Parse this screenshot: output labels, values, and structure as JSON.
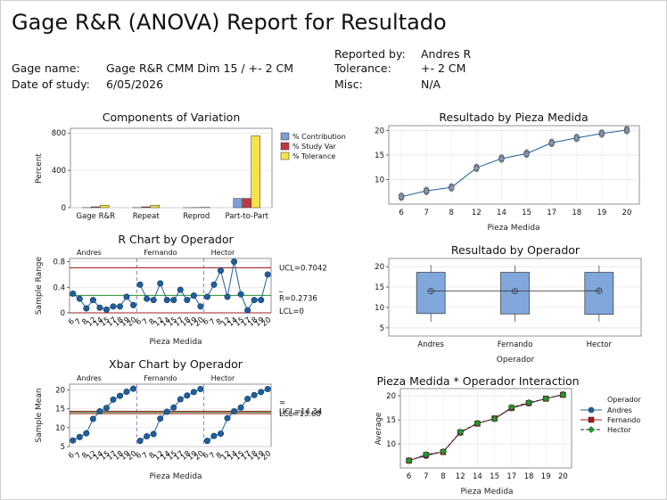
{
  "report": {
    "title": "Gage R&R (ANOVA) Report for Resultado",
    "gage_name_label": "Gage name:",
    "gage_name": "Gage R&R CMM Dim 15 / +- 2 CM",
    "date_label": "Date of study:",
    "date": "6/05/2026",
    "reported_by_label": "Reported by:",
    "reported_by": "Andres R",
    "tolerance_label": "Tolerance:",
    "tolerance": "+- 2 CM",
    "misc_label": "Misc:",
    "misc": "N/A"
  },
  "colors": {
    "contribution": "#7a9fd4",
    "study_var": "#c0393f",
    "tolerance": "#f5e34a",
    "series_blue": "#1f5f9c",
    "ucl": "#a32020",
    "center": "#2e8b2e",
    "box": "#7fa7dc",
    "op_fernando": "#9b2020",
    "op_hector": "#1f9a2f"
  },
  "chart_data": [
    {
      "id": "components",
      "type": "bar",
      "title": "Components of Variation",
      "xlabel": "",
      "ylabel": "Percent",
      "ylim": [
        0,
        850
      ],
      "yticks": [
        0,
        400,
        800
      ],
      "categories": [
        "Gage R&R",
        "Repeat",
        "Reprod",
        "Part-to-Part"
      ],
      "series": [
        {
          "name": "% Contribution",
          "values": [
            0.9,
            0.9,
            0.1,
            99.1
          ]
        },
        {
          "name": "% Study Var",
          "values": [
            9.5,
            9.4,
            1.2,
            99.5
          ]
        },
        {
          "name": "% Tolerance",
          "values": [
            26,
            26,
            3,
            770
          ]
        }
      ],
      "legend": "right"
    },
    {
      "id": "part",
      "type": "line",
      "title": "Resultado by Pieza Medida",
      "xlabel": "Pieza Medida",
      "ylabel": "",
      "categories": [
        "6",
        "7",
        "8",
        "12",
        "14",
        "15",
        "17",
        "18",
        "19",
        "20"
      ],
      "ylim": [
        5,
        21
      ],
      "yticks": [
        10,
        15,
        20
      ],
      "values": [
        6.5,
        7.7,
        8.4,
        12.4,
        14.3,
        15.3,
        17.5,
        18.5,
        19.4,
        20.1
      ]
    },
    {
      "id": "rchart",
      "type": "line",
      "title": "R Chart by Operador",
      "xlabel": "Pieza Medida",
      "ylabel": "Sample Range",
      "panels": [
        "Andres",
        "Fernando",
        "Hector"
      ],
      "tick_labels": [
        "6",
        "7",
        "8",
        "12",
        "14",
        "15",
        "17",
        "18",
        "19",
        "20"
      ],
      "ylim": [
        0,
        0.85
      ],
      "yticks": [
        0.0,
        0.4,
        0.8
      ],
      "values": [
        0.3,
        0.22,
        0.07,
        0.2,
        0.08,
        0.05,
        0.1,
        0.1,
        0.25,
        0.12,
        0.44,
        0.22,
        0.2,
        0.46,
        0.2,
        0.2,
        0.36,
        0.2,
        0.27,
        0.1,
        0.25,
        0.44,
        0.66,
        0.25,
        0.8,
        0.29,
        0.04,
        0.2,
        0.2,
        0.6
      ],
      "ucl": 0.7042,
      "center": 0.2736,
      "lcl": 0,
      "labels": {
        "ucl": "UCL=0.7042",
        "center": "R=0.2736",
        "center_bar": "_",
        "lcl": "LCL=0"
      }
    },
    {
      "id": "xbar",
      "type": "line",
      "title": "Xbar Chart by Operador",
      "xlabel": "Pieza Medida",
      "ylabel": "Sample Mean",
      "panels": [
        "Andres",
        "Fernando",
        "Hector"
      ],
      "tick_labels": [
        "6",
        "7",
        "8",
        "12",
        "14",
        "15",
        "17",
        "18",
        "19",
        "20"
      ],
      "ylim": [
        5,
        21.5
      ],
      "yticks": [
        5,
        10,
        15,
        20
      ],
      "values": [
        6.6,
        7.5,
        8.5,
        12.3,
        14.3,
        15.2,
        17.4,
        18.4,
        19.5,
        20.3,
        6.5,
        7.7,
        8.3,
        12.4,
        14.2,
        15.3,
        17.5,
        18.5,
        19.4,
        20.2,
        6.5,
        7.8,
        8.4,
        12.5,
        14.3,
        15.3,
        17.6,
        18.6,
        19.4,
        20.2
      ],
      "ucl": 14.34,
      "center": 14.06,
      "lcl": 13.68,
      "labels": {
        "ucl": "UCL=14.34",
        "center": "=",
        "lcl": "LCL=13.68"
      }
    },
    {
      "id": "operator",
      "type": "box",
      "title": "Resultado by Operador",
      "xlabel": "Operador",
      "ylabel": "",
      "categories": [
        "Andres",
        "Fernando",
        "Hector"
      ],
      "ylim": [
        3,
        22
      ],
      "yticks": [
        5,
        10,
        15,
        20
      ],
      "q1": [
        8.5,
        8.4,
        8.3
      ],
      "q3": [
        18.6,
        18.6,
        18.6
      ],
      "whisker_low": [
        6.5,
        6.5,
        6.5
      ],
      "whisker_high": [
        20.4,
        20.3,
        20.3
      ],
      "mean": [
        14.0,
        14.0,
        14.1
      ]
    },
    {
      "id": "interaction",
      "type": "line",
      "title": "Pieza Medida * Operador Interaction",
      "xlabel": "Pieza Medida",
      "ylabel": "Average",
      "categories": [
        "6",
        "7",
        "8",
        "12",
        "14",
        "15",
        "17",
        "18",
        "19",
        "20"
      ],
      "ylim": [
        5,
        21.5
      ],
      "yticks": [
        10,
        15,
        20
      ],
      "legend_title": "Operador",
      "series": [
        {
          "name": "Andres",
          "values": [
            6.6,
            7.5,
            8.4,
            12.3,
            14.3,
            15.2,
            17.4,
            18.4,
            19.4,
            20.3
          ]
        },
        {
          "name": "Fernando",
          "values": [
            6.5,
            7.7,
            8.3,
            12.4,
            14.2,
            15.3,
            17.5,
            18.5,
            19.4,
            20.2
          ]
        },
        {
          "name": "Hector",
          "values": [
            6.5,
            7.8,
            8.4,
            12.5,
            14.3,
            15.2,
            17.6,
            18.6,
            19.4,
            20.2
          ]
        }
      ]
    }
  ]
}
